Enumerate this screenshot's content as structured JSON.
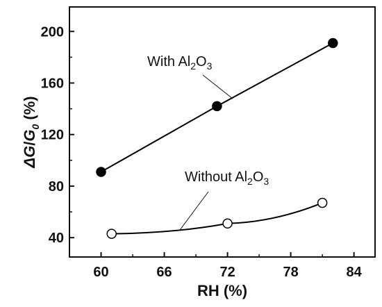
{
  "chart_data": {
    "type": "line",
    "title": "",
    "xlabel": "RH (%)",
    "ylabel": {
      "delta": "ΔG",
      "slash": "/",
      "base": "G",
      "sub": "0",
      "unit": " (%)"
    },
    "xlim": [
      57,
      86
    ],
    "ylim": [
      25,
      219
    ],
    "xticks": [
      60,
      66,
      72,
      78,
      84
    ],
    "yticks": [
      40,
      80,
      120,
      160,
      200
    ],
    "grid": false,
    "series": [
      {
        "name": "With Al2O3",
        "marker": "filled-circle",
        "color": "#000000",
        "x": [
          60,
          71,
          82
        ],
        "y": [
          91,
          142,
          191
        ]
      },
      {
        "name": "Without Al2O3",
        "marker": "open-circle",
        "color": "#000000",
        "x": [
          61,
          72,
          81
        ],
        "y": [
          43,
          51,
          67
        ]
      }
    ],
    "annotations": [
      {
        "label": {
          "pre": "With Al",
          "s1": "2",
          "mid": "O",
          "s2": "3"
        },
        "series": 0
      },
      {
        "label": {
          "pre": "Without Al",
          "s1": "2",
          "mid": "O",
          "s2": "3"
        },
        "series": 1
      }
    ]
  }
}
